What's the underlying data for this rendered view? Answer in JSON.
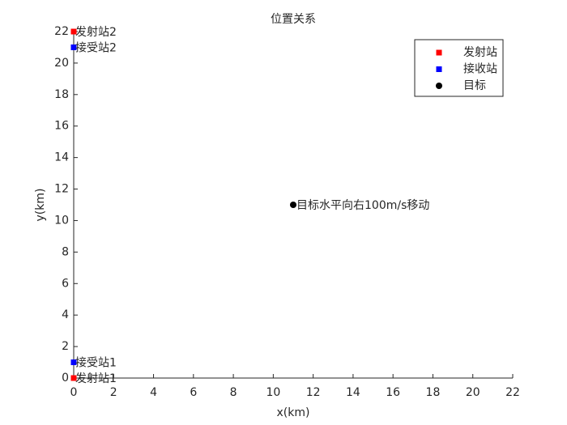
{
  "chart_data": {
    "type": "scatter",
    "title": "位置关系",
    "xlabel": "x(km)",
    "ylabel": "y(km)",
    "xlim": [
      0,
      22
    ],
    "ylim": [
      0,
      22
    ],
    "xticks": [
      0,
      2,
      4,
      6,
      8,
      10,
      12,
      14,
      16,
      18,
      20,
      22
    ],
    "yticks": [
      0,
      2,
      4,
      6,
      8,
      10,
      12,
      14,
      16,
      18,
      20,
      22
    ],
    "grid": false,
    "legend_position": "northeast",
    "series": [
      {
        "name": "发射站",
        "color": "#ff0000",
        "marker": "square",
        "x": [
          0,
          0
        ],
        "values": [
          0,
          22
        ],
        "labels": [
          "发射站1",
          "发射站2"
        ]
      },
      {
        "name": "接收站",
        "color": "#0000ff",
        "marker": "square",
        "x": [
          0,
          0
        ],
        "values": [
          1,
          21
        ],
        "labels": [
          "接受站1",
          "接受站2"
        ]
      },
      {
        "name": "目标",
        "color": "#000000",
        "marker": "circle",
        "x": [
          11
        ],
        "values": [
          11
        ],
        "labels": [
          "目标水平向右100m/s移动"
        ]
      }
    ]
  }
}
